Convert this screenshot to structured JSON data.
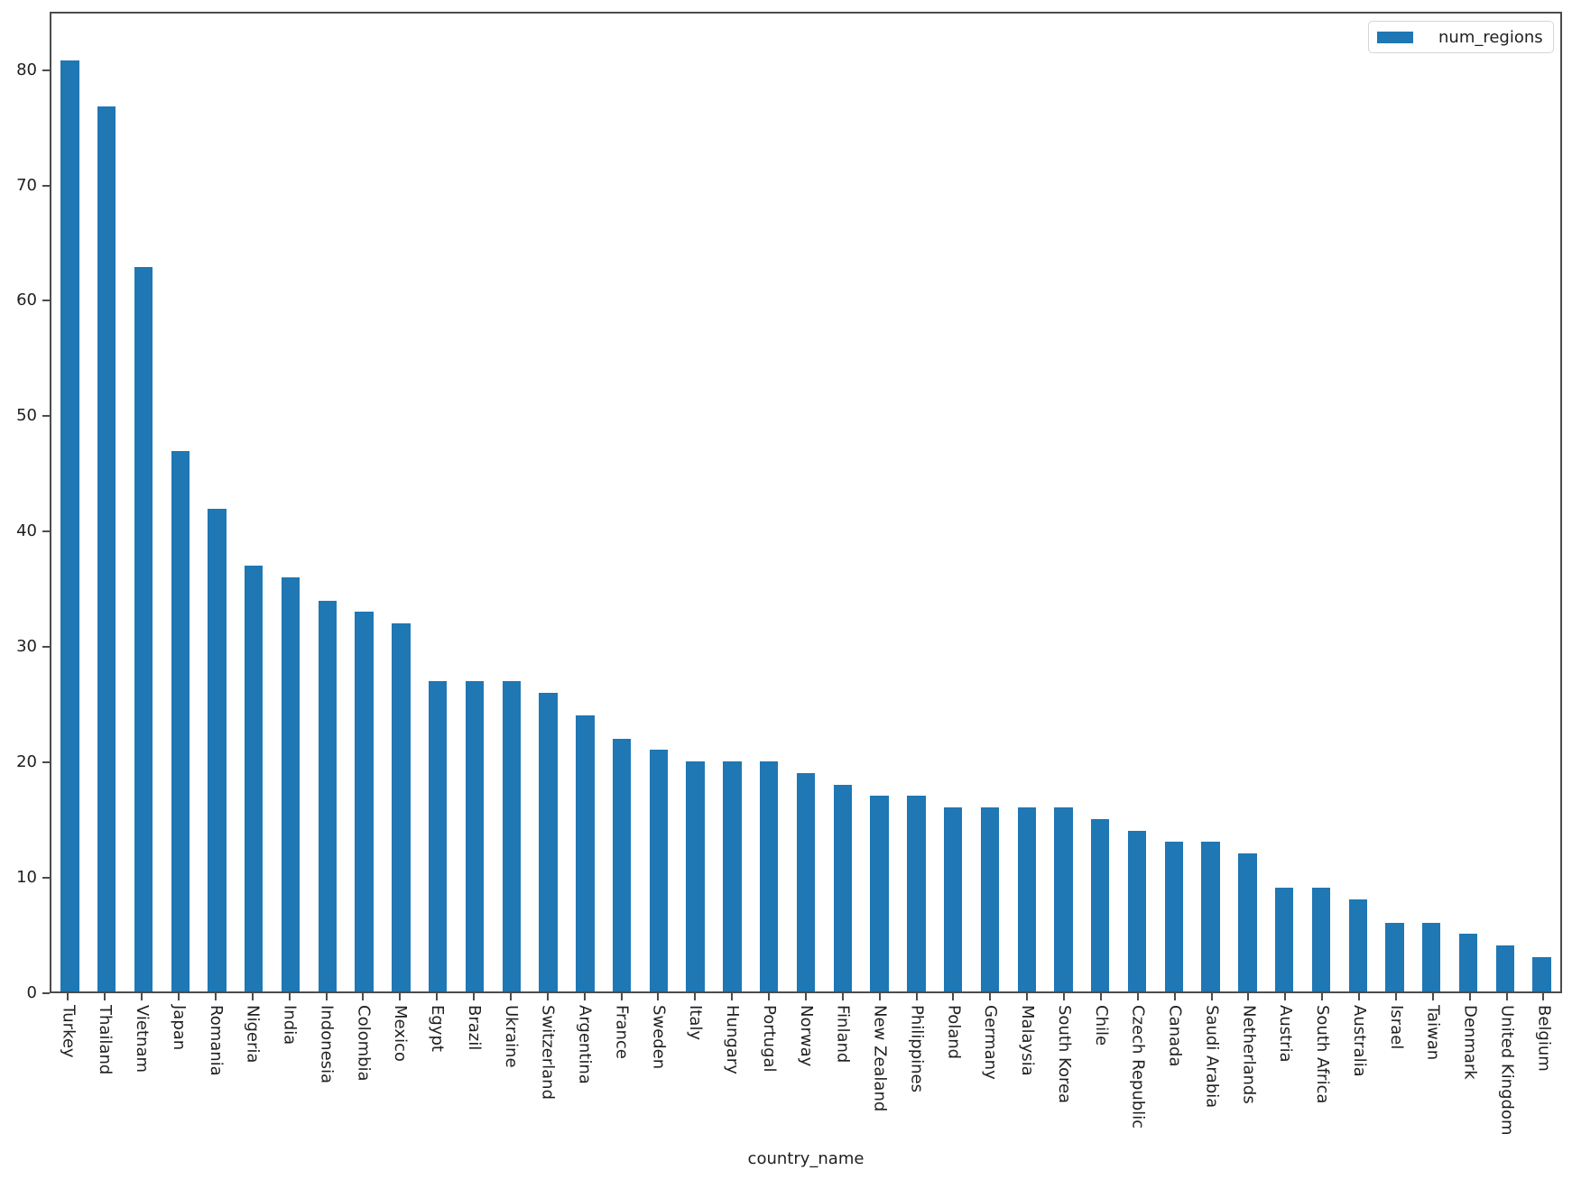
{
  "chart_data": {
    "type": "bar",
    "title": "",
    "xlabel": "country_name",
    "ylabel": "",
    "grid": false,
    "bar_color": "#1f77b4",
    "axis_color": "#4c4c4c",
    "legend": {
      "label": "num_regions",
      "position": "upper right"
    },
    "yticks": [
      0,
      10,
      20,
      30,
      40,
      50,
      60,
      70,
      80
    ],
    "ylim": [
      0,
      85.05
    ],
    "categories": [
      "Turkey",
      "Thailand",
      "Vietnam",
      "Japan",
      "Romania",
      "Nigeria",
      "India",
      "Indonesia",
      "Colombia",
      "Mexico",
      "Egypt",
      "Brazil",
      "Ukraine",
      "Switzerland",
      "Argentina",
      "France",
      "Sweden",
      "Italy",
      "Hungary",
      "Portugal",
      "Norway",
      "Finland",
      "New Zealand",
      "Philippines",
      "Poland",
      "Germany",
      "Malaysia",
      "South Korea",
      "Chile",
      "Czech Republic",
      "Canada",
      "Saudi Arabia",
      "Netherlands",
      "Austria",
      "South Africa",
      "Australia",
      "Israel",
      "Taiwan",
      "Denmark",
      "United Kingdom",
      "Belgium"
    ],
    "values": [
      81,
      77,
      63,
      47,
      42,
      37,
      36,
      34,
      33,
      32,
      27,
      27,
      27,
      26,
      24,
      22,
      21,
      20,
      20,
      20,
      19,
      18,
      17,
      17,
      16,
      16,
      16,
      16,
      15,
      14,
      13,
      13,
      12,
      9,
      9,
      8,
      6,
      6,
      5,
      4,
      3
    ]
  }
}
